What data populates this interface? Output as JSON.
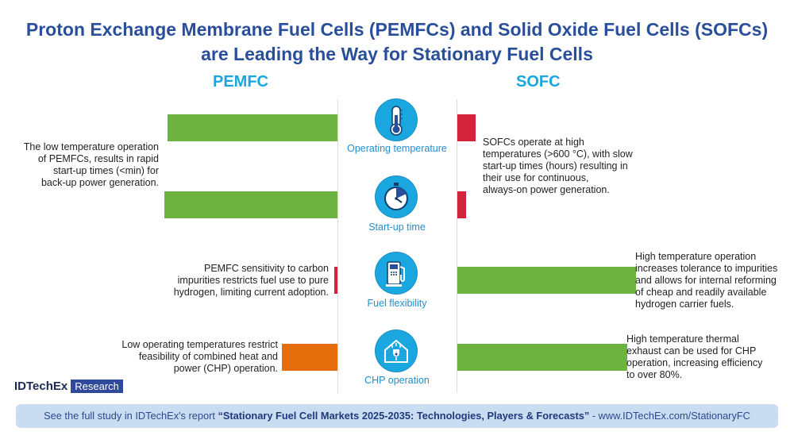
{
  "title": {
    "line1": "Proton Exchange Membrane Fuel Cells (PEMFCs) and Solid Oxide Fuel Cells (SOFCs)",
    "line2": "are Leading the Way for Stationary Fuel Cells"
  },
  "columns": {
    "left": "PEMFC",
    "right": "SOFC"
  },
  "rows": [
    {
      "category": "Operating temperature",
      "icon": "thermometer-icon",
      "pemfc_level": 0.98,
      "sofc_level": 0.1,
      "pemfc_color": "#6db33f",
      "sofc_color": "#d2233c",
      "pemfc_text": [
        "The low temperature operation",
        "of PEMFCs, results in rapid",
        "start-up times (<min) for",
        "back-up power generation."
      ],
      "sofc_text": [
        "SOFCs operate at high",
        "temperatures (>600 °C), with slow",
        "start-up times (hours) resulting in",
        "their use for continuous,",
        "always-on power generation."
      ]
    },
    {
      "category": "Start-up time",
      "icon": "stopwatch-icon",
      "pemfc_level": 1.0,
      "sofc_level": 0.05,
      "pemfc_color": "#6db33f",
      "sofc_color": "#d2233c",
      "pemfc_text": [],
      "sofc_text": []
    },
    {
      "category": "Fuel flexibility",
      "icon": "fuel-pump-icon",
      "pemfc_level": 0.02,
      "sofc_level": 1.0,
      "pemfc_color": "#d2233c",
      "sofc_color": "#6db33f",
      "pemfc_text": [
        "PEMFC sensitivity to carbon",
        "impurities restricts fuel use to pure",
        "hydrogen, limiting current adoption."
      ],
      "sofc_text": [
        "High temperature operation",
        "increases tolerance to impurities",
        "and allows for internal reforming",
        "of cheap and readily available",
        "hydrogen carrier fuels."
      ]
    },
    {
      "category": "CHP operation",
      "icon": "house-energy-icon",
      "pemfc_level": 0.32,
      "sofc_level": 0.95,
      "pemfc_color": "#e46c0a",
      "sofc_color": "#6db33f",
      "pemfc_text": [
        "Low operating temperatures restrict",
        "feasibility of combined heat and",
        "power (CHP) operation."
      ],
      "sofc_text": [
        "High temperature thermal",
        "exhaust can be used for CHP",
        "operation, increasing efficiency",
        "to over 80%."
      ]
    }
  ],
  "logo": {
    "brand": "IDTechEx",
    "badge": "Research"
  },
  "footer": {
    "prefix": "See the full study in IDTechEx's report ",
    "report": "“Stationary Fuel Cell Markets 2025-2035: Technologies, Players & Forecasts”",
    "suffix": " - www.IDTechEx.com/StationaryFC"
  }
}
